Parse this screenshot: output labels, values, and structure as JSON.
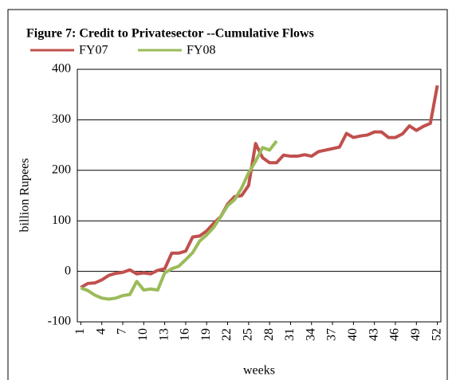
{
  "chart_data": {
    "type": "line",
    "title": "Figure 7: Credit to Privatesector --Cumulative Flows",
    "x_label": "weeks",
    "y_label": "billion Rupees",
    "x": [
      1,
      2,
      3,
      4,
      5,
      6,
      7,
      8,
      9,
      10,
      11,
      12,
      13,
      14,
      15,
      16,
      17,
      18,
      19,
      20,
      21,
      22,
      23,
      24,
      25,
      26,
      27,
      28,
      29,
      30,
      31,
      32,
      33,
      34,
      35,
      36,
      37,
      38,
      39,
      40,
      41,
      42,
      43,
      44,
      45,
      46,
      47,
      48,
      49,
      50,
      51,
      52
    ],
    "xlim": [
      0.5,
      52.5
    ],
    "xticks": [
      1,
      4,
      7,
      10,
      13,
      16,
      19,
      22,
      25,
      28,
      31,
      34,
      37,
      40,
      43,
      46,
      49,
      52
    ],
    "ylim": [
      -100,
      400
    ],
    "yticks": [
      -100,
      0,
      100,
      200,
      300,
      400
    ],
    "grid": true,
    "series": [
      {
        "name": "FY07",
        "color": "#c0504d",
        "values": [
          -32,
          -24,
          -23,
          -17,
          -8,
          -4,
          -2,
          3,
          -5,
          -3,
          -5,
          2,
          5,
          36,
          36,
          40,
          68,
          70,
          80,
          95,
          108,
          133,
          148,
          150,
          170,
          253,
          225,
          215,
          215,
          230,
          228,
          228,
          231,
          228,
          237,
          240,
          243,
          246,
          273,
          265,
          268,
          270,
          276,
          276,
          265,
          265,
          272,
          288,
          279,
          287,
          293,
          368
        ]
      },
      {
        "name": "FY08",
        "color": "#9bbb59",
        "values": [
          -33,
          -38,
          -47,
          -53,
          -55,
          -53,
          -48,
          -46,
          -20,
          -37,
          -35,
          -37,
          -3,
          5,
          10,
          23,
          37,
          60,
          72,
          87,
          108,
          130,
          142,
          165,
          195,
          218,
          245,
          240,
          258,
          null,
          null,
          null,
          null,
          null,
          null,
          null,
          null,
          null,
          null,
          null,
          null,
          null,
          null,
          null,
          null,
          null,
          null,
          null,
          null,
          null,
          null,
          null
        ]
      }
    ]
  }
}
